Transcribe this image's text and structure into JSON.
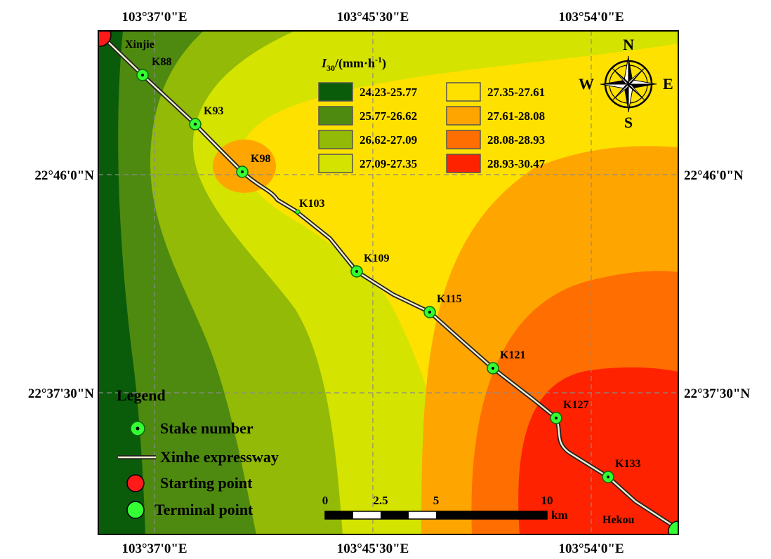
{
  "coords": {
    "top": [
      "103°37'0\"E",
      "103°45'30\"E",
      "103°54'0\"E"
    ],
    "bottom": [
      "103°37'0\"E",
      "103°45'30\"E",
      "103°54'0\"E"
    ],
    "left": [
      "22°46'0\"N",
      "22°37'30\"N"
    ],
    "right": [
      "22°46'0\"N",
      "22°37'30\"N"
    ]
  },
  "places": {
    "start": "Xinjie",
    "end": "Hekou"
  },
  "stakes": [
    "K88",
    "K93",
    "K98",
    "K103",
    "K109",
    "K115",
    "K121",
    "K127",
    "K133"
  ],
  "intensity_legend": {
    "title_italic": "I",
    "title_sub": "30",
    "title_unit": "/(mm·h",
    "title_sup": "-1",
    "title_close": ")",
    "classes": [
      {
        "range": "24.23-25.77",
        "color": "#0a5c0a"
      },
      {
        "range": "25.77-26.62",
        "color": "#4e8a10"
      },
      {
        "range": "26.62-27.09",
        "color": "#92ba06"
      },
      {
        "range": "27.09-27.35",
        "color": "#d5e300"
      },
      {
        "range": "27.35-27.61",
        "color": "#ffe100"
      },
      {
        "range": "27.61-28.08",
        "color": "#ffa500"
      },
      {
        "range": "28.08-28.93",
        "color": "#ff6e00"
      },
      {
        "range": "28.93-30.47",
        "color": "#ff2200"
      }
    ]
  },
  "legend": {
    "title": "Legend",
    "items": [
      "Stake number",
      "Xinhe expressway",
      "Starting point",
      "Terminal point"
    ]
  },
  "compass": {
    "n": "N",
    "s": "S",
    "e": "E",
    "w": "W"
  },
  "scalebar": {
    "ticks": [
      "0",
      "2.5",
      "5",
      "10"
    ],
    "unit": "km"
  },
  "colors": {
    "stake": "#33ff33",
    "start": "#ff1a1a",
    "terminal": "#33ff33"
  }
}
